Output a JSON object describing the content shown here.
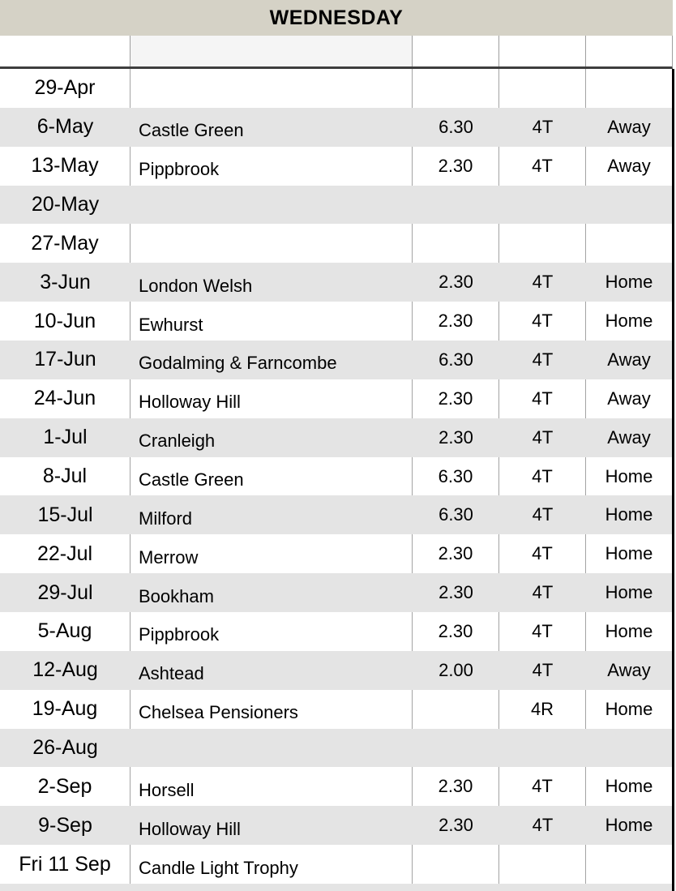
{
  "header": {
    "title": "WEDNESDAY"
  },
  "colors": {
    "banner_bg": "#d5d2c6",
    "shaded_row_bg": "#e4e4e4",
    "spacer_opponent_bg": "#f5f5f5",
    "gridline": "#a3a3a3",
    "header_divider": "#3e3e3e",
    "table_right_edge": "#000000",
    "text": "#000000"
  },
  "schedule": {
    "columns": [
      "date",
      "opponent",
      "time",
      "rinks",
      "venue"
    ],
    "rows": [
      {
        "date": "29-Apr",
        "opponent": "",
        "time": "",
        "rinks": "",
        "venue": ""
      },
      {
        "date": "6-May",
        "opponent": "Castle Green",
        "time": "6.30",
        "rinks": "4T",
        "venue": "Away"
      },
      {
        "date": "13-May",
        "opponent": "Pippbrook",
        "time": "2.30",
        "rinks": "4T",
        "venue": "Away"
      },
      {
        "date": "20-May",
        "opponent": "",
        "time": "",
        "rinks": "",
        "venue": ""
      },
      {
        "date": "27-May",
        "opponent": "",
        "time": "",
        "rinks": "",
        "venue": ""
      },
      {
        "date": "3-Jun",
        "opponent": "London Welsh",
        "time": "2.30",
        "rinks": "4T",
        "venue": "Home"
      },
      {
        "date": "10-Jun",
        "opponent": "Ewhurst",
        "time": "2.30",
        "rinks": "4T",
        "venue": "Home"
      },
      {
        "date": "17-Jun",
        "opponent": "Godalming & Farncombe",
        "time": "6.30",
        "rinks": "4T",
        "venue": "Away"
      },
      {
        "date": "24-Jun",
        "opponent": "Holloway Hill",
        "time": "2.30",
        "rinks": "4T",
        "venue": "Away"
      },
      {
        "date": "1-Jul",
        "opponent": "Cranleigh",
        "time": "2.30",
        "rinks": "4T",
        "venue": "Away"
      },
      {
        "date": "8-Jul",
        "opponent": "Castle Green",
        "time": "6.30",
        "rinks": "4T",
        "venue": "Home"
      },
      {
        "date": "15-Jul",
        "opponent": "Milford",
        "time": "6.30",
        "rinks": "4T",
        "venue": "Home"
      },
      {
        "date": "22-Jul",
        "opponent": "Merrow",
        "time": "2.30",
        "rinks": "4T",
        "venue": "Home"
      },
      {
        "date": "29-Jul",
        "opponent": "Bookham",
        "time": "2.30",
        "rinks": "4T",
        "venue": "Home"
      },
      {
        "date": "5-Aug",
        "opponent": "Pippbrook",
        "time": "2.30",
        "rinks": "4T",
        "venue": "Home"
      },
      {
        "date": "12-Aug",
        "opponent": "Ashtead",
        "time": "2.00",
        "rinks": "4T",
        "venue": "Away"
      },
      {
        "date": "19-Aug",
        "opponent": "Chelsea Pensioners",
        "time": "",
        "rinks": "4R",
        "venue": "Home"
      },
      {
        "date": "26-Aug",
        "opponent": "",
        "time": "",
        "rinks": "",
        "venue": ""
      },
      {
        "date": "2-Sep",
        "opponent": "Horsell",
        "time": "2.30",
        "rinks": "4T",
        "venue": "Home"
      },
      {
        "date": "9-Sep",
        "opponent": "Holloway Hill",
        "time": "2.30",
        "rinks": "4T",
        "venue": "Home"
      },
      {
        "date": "Fri 11 Sep",
        "opponent": "Candle Light Trophy",
        "time": "",
        "rinks": "",
        "venue": ""
      }
    ]
  }
}
